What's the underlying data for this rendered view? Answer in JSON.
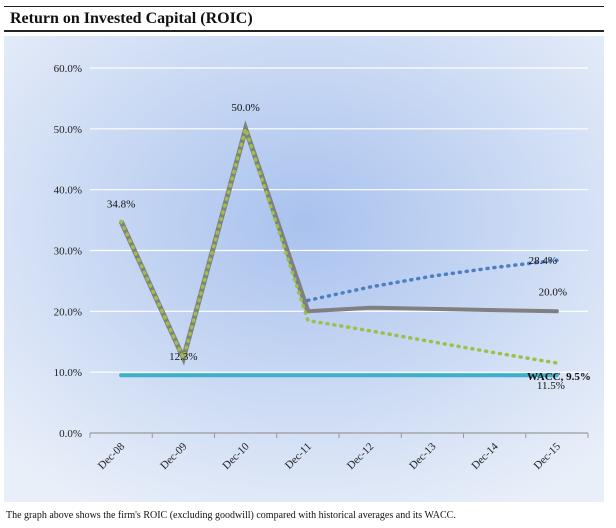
{
  "header": {
    "title": "Return on Invested Capital (ROIC)"
  },
  "caption": "The graph above shows the firm's ROIC (excluding goodwill) compared with historical averages and its WACC.",
  "colors": {
    "background_center": "#a9c2ee",
    "background_edge": "#e9eff9",
    "gridline": "#ffffff",
    "roic": "#808080",
    "upside": "#4e7fc4",
    "downside": "#9dc048",
    "wacc": "#3fb0c9"
  },
  "chart_data": {
    "type": "line",
    "title": "Return on Invested Capital (ROIC)",
    "categories": [
      "Dec-08",
      "Dec-09",
      "Dec-10",
      "Dec-11",
      "Dec-12",
      "Dec-13",
      "Dec-14",
      "Dec-15"
    ],
    "ylim": [
      0,
      60
    ],
    "yticks": [
      "0.0%",
      "10.0%",
      "20.0%",
      "30.0%",
      "40.0%",
      "50.0%",
      "60.0%"
    ],
    "grid": true,
    "series": [
      {
        "key": "roic",
        "values": [
          null,
          null,
          null,
          20.0,
          20.6,
          20.4,
          20.2,
          20.0
        ]
      },
      {
        "key": "upside",
        "values": [
          null,
          null,
          null,
          21.8,
          24.0,
          25.8,
          27.2,
          28.4
        ]
      },
      {
        "key": "downside",
        "values": [
          34.8,
          12.3,
          50.0,
          18.5,
          16.8,
          15.0,
          13.2,
          11.5
        ]
      },
      {
        "key": "wacc",
        "values": [
          9.5,
          9.5,
          9.5,
          9.5,
          9.5,
          9.5,
          9.5,
          9.5
        ]
      }
    ],
    "data_labels": [
      "34.8%",
      "12.3%",
      "50.0%",
      "28.4%",
      "20.0%",
      "11.5%",
      "WACC, 9.5%"
    ]
  }
}
